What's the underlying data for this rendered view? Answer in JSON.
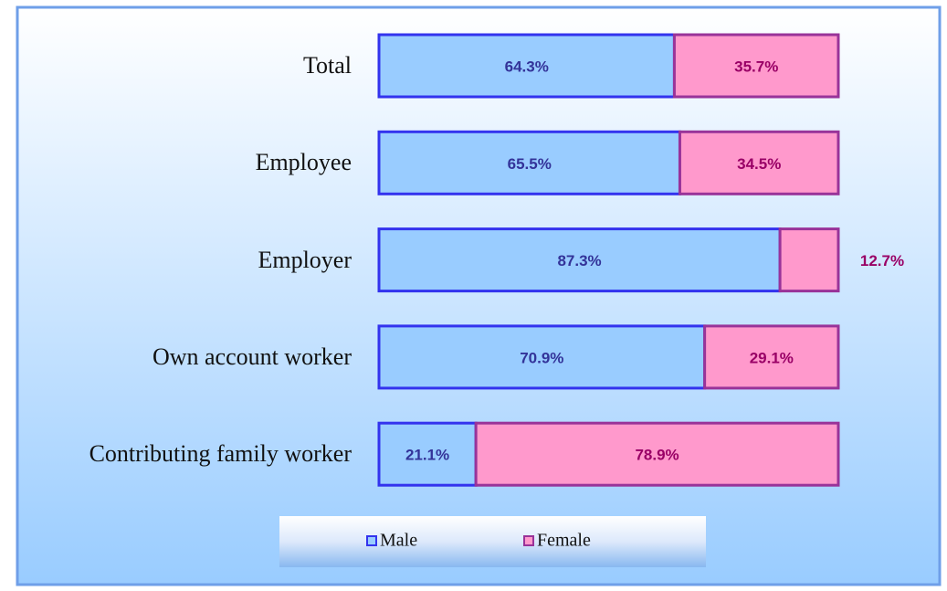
{
  "chart_data": {
    "type": "stacked_barh",
    "categories": [
      "Total",
      "Employee",
      "Employer",
      "Own account worker",
      "Contributing family worker"
    ],
    "series": [
      {
        "name": "Male",
        "color": "#99ccff",
        "edgecolor": "#3333ee",
        "label_color": "#333399",
        "values": [
          64.3,
          65.5,
          87.3,
          70.9,
          21.1
        ],
        "value_labels": [
          "64.3%",
          "65.5%",
          "87.3%",
          "70.9%",
          "21.1%"
        ]
      },
      {
        "name": "Female",
        "color": "#ff99cc",
        "edgecolor": "#993399",
        "label_color": "#990066",
        "values": [
          35.7,
          34.5,
          12.7,
          29.1,
          78.9
        ],
        "value_labels": [
          "35.7%",
          "34.5%",
          "12.7%",
          "29.1%",
          "78.9%"
        ]
      }
    ],
    "legend": "bottom"
  }
}
